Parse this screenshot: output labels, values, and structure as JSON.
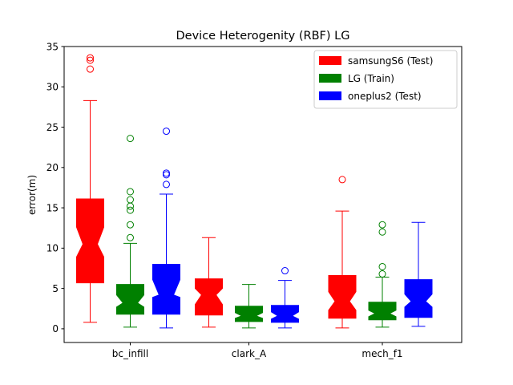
{
  "chart_data": {
    "type": "box",
    "title": "Device Heterogenity (RBF) LG",
    "xlabel": "",
    "ylabel": "error(m)",
    "ylim": [
      -1.7,
      35
    ],
    "yticks": [
      0,
      5,
      10,
      15,
      20,
      25,
      30,
      35
    ],
    "categories": [
      "bc_infill",
      "clark_A",
      "mech_f1"
    ],
    "notched": true,
    "grid": false,
    "legend_position": "top-right",
    "series": [
      {
        "name": "samsungS6 (Test)",
        "color": "#ff0000",
        "boxes": [
          {
            "whislo": 0.8,
            "q1": 5.7,
            "med": 10.5,
            "notch_lo": 8.9,
            "notch_hi": 12.6,
            "q3": 16.1,
            "whishi": 28.3,
            "fliers": [
              32.2,
              33.3,
              33.6
            ]
          },
          {
            "whislo": 0.2,
            "q1": 1.7,
            "med": 4.2,
            "notch_lo": 3.0,
            "notch_hi": 5.0,
            "q3": 6.2,
            "whishi": 11.3,
            "fliers": []
          },
          {
            "whislo": 0.1,
            "q1": 1.3,
            "med": 3.4,
            "notch_lo": 2.3,
            "notch_hi": 4.6,
            "q3": 6.6,
            "whishi": 14.6,
            "fliers": [
              18.5
            ]
          }
        ]
      },
      {
        "name": "LG (Train)",
        "color": "#008000",
        "boxes": [
          {
            "whislo": 0.2,
            "q1": 1.8,
            "med": 3.2,
            "notch_lo": 2.7,
            "notch_hi": 4.2,
            "q3": 5.5,
            "whishi": 10.6,
            "fliers": [
              11.3,
              12.9,
              14.7,
              15.2,
              16.0,
              17.0,
              23.6
            ]
          },
          {
            "whislo": 0.1,
            "q1": 0.9,
            "med": 1.6,
            "notch_lo": 1.3,
            "notch_hi": 2.0,
            "q3": 2.8,
            "whishi": 5.5,
            "fliers": []
          },
          {
            "whislo": 0.2,
            "q1": 1.1,
            "med": 1.9,
            "notch_lo": 1.5,
            "notch_hi": 2.3,
            "q3": 3.3,
            "whishi": 6.4,
            "fliers": [
              6.8,
              7.7,
              12.0,
              12.9
            ]
          }
        ]
      },
      {
        "name": "oneplus2 (Test)",
        "color": "#0000ff",
        "boxes": [
          {
            "whislo": 0.1,
            "q1": 1.8,
            "med": 4.2,
            "notch_lo": 3.9,
            "notch_hi": 6.1,
            "q3": 8.0,
            "whishi": 16.7,
            "fliers": [
              17.9,
              19.1,
              19.3,
              24.5
            ]
          },
          {
            "whislo": 0.1,
            "q1": 0.8,
            "med": 1.6,
            "notch_lo": 1.2,
            "notch_hi": 2.1,
            "q3": 2.9,
            "whishi": 6.0,
            "fliers": [
              7.2
            ]
          },
          {
            "whislo": 0.3,
            "q1": 1.4,
            "med": 3.4,
            "notch_lo": 2.7,
            "notch_hi": 4.3,
            "q3": 6.1,
            "whishi": 13.2,
            "fliers": []
          }
        ]
      }
    ]
  }
}
